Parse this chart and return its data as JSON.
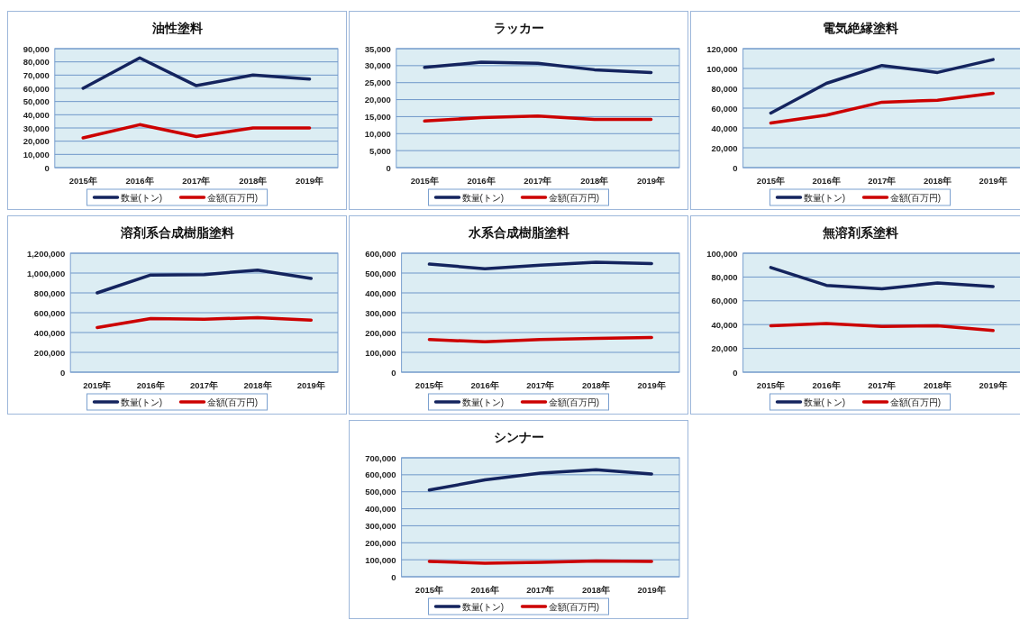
{
  "chart_data": [
    {
      "type": "line",
      "title": "油性塗料",
      "categories": [
        "2015年",
        "2016年",
        "2017年",
        "2018年",
        "2019年"
      ],
      "grid": "y",
      "legend": "bottom",
      "ylim": [
        0,
        90000
      ],
      "yticks": [
        {
          "value": 0,
          "label": "0"
        },
        {
          "value": 10000,
          "label": "10,000"
        },
        {
          "value": 20000,
          "label": "20,000"
        },
        {
          "value": 30000,
          "label": "30,000"
        },
        {
          "value": 40000,
          "label": "40,000"
        },
        {
          "value": 50000,
          "label": "50,000"
        },
        {
          "value": 60000,
          "label": "60,000"
        },
        {
          "value": 70000,
          "label": "70,000"
        },
        {
          "value": 80000,
          "label": "80,000"
        },
        {
          "value": 90000,
          "label": "90,000"
        }
      ],
      "series": [
        {
          "name": "数量(トン)",
          "color": "#14245e",
          "values": [
            60000,
            83000,
            62000,
            70000,
            67000
          ]
        },
        {
          "name": "金額(百万円)",
          "color": "#cc0000",
          "values": [
            22500,
            32500,
            23500,
            30000,
            30000
          ]
        }
      ]
    },
    {
      "type": "line",
      "title": "ラッカー",
      "categories": [
        "2015年",
        "2016年",
        "2017年",
        "2018年",
        "2019年"
      ],
      "grid": "y",
      "legend": "bottom",
      "ylim": [
        0,
        35000
      ],
      "yticks": [
        {
          "value": 0,
          "label": "0"
        },
        {
          "value": 5000,
          "label": "5,000"
        },
        {
          "value": 10000,
          "label": "10,000"
        },
        {
          "value": 15000,
          "label": "15,000"
        },
        {
          "value": 20000,
          "label": "20,000"
        },
        {
          "value": 25000,
          "label": "25,000"
        },
        {
          "value": 30000,
          "label": "30,000"
        },
        {
          "value": 35000,
          "label": "35,000"
        }
      ],
      "series": [
        {
          "name": "数量(トン)",
          "color": "#14245e",
          "values": [
            29500,
            31000,
            30700,
            28800,
            28000
          ]
        },
        {
          "name": "金額(百万円)",
          "color": "#cc0000",
          "values": [
            13700,
            14700,
            15200,
            14200,
            14200
          ]
        }
      ]
    },
    {
      "type": "line",
      "title": "電気絶縁塗料",
      "categories": [
        "2015年",
        "2016年",
        "2017年",
        "2018年",
        "2019年"
      ],
      "grid": "y",
      "legend": "bottom",
      "ylim": [
        0,
        120000
      ],
      "yticks": [
        {
          "value": 0,
          "label": "0"
        },
        {
          "value": 20000,
          "label": "20,000"
        },
        {
          "value": 40000,
          "label": "40,000"
        },
        {
          "value": 60000,
          "label": "60,000"
        },
        {
          "value": 80000,
          "label": "80,000"
        },
        {
          "value": 100000,
          "label": "100,000"
        },
        {
          "value": 120000,
          "label": "120,000"
        }
      ],
      "series": [
        {
          "name": "数量(トン)",
          "color": "#14245e",
          "values": [
            55000,
            85000,
            103000,
            96000,
            109000
          ]
        },
        {
          "name": "金額(百万円)",
          "color": "#cc0000",
          "values": [
            45000,
            53000,
            66000,
            68000,
            75000
          ]
        }
      ]
    },
    {
      "type": "line",
      "title": "溶剤系合成樹脂塗料",
      "categories": [
        "2015年",
        "2016年",
        "2017年",
        "2018年",
        "2019年"
      ],
      "grid": "y",
      "legend": "bottom",
      "ylim": [
        0,
        1200000
      ],
      "yticks": [
        {
          "value": 0,
          "label": "0"
        },
        {
          "value": 200000,
          "label": "200,000"
        },
        {
          "value": 400000,
          "label": "400,000"
        },
        {
          "value": 600000,
          "label": "600,000"
        },
        {
          "value": 800000,
          "label": "800,000"
        },
        {
          "value": 1000000,
          "label": "1,000,000"
        },
        {
          "value": 1200000,
          "label": "1,200,000"
        }
      ],
      "series": [
        {
          "name": "数量(トン)",
          "color": "#14245e",
          "values": [
            800000,
            980000,
            985000,
            1030000,
            945000
          ]
        },
        {
          "name": "金額(百万円)",
          "color": "#cc0000",
          "values": [
            450000,
            540000,
            535000,
            550000,
            525000
          ]
        }
      ]
    },
    {
      "type": "line",
      "title": "水系合成樹脂塗料",
      "categories": [
        "2015年",
        "2016年",
        "2017年",
        "2018年",
        "2019年"
      ],
      "grid": "y",
      "legend": "bottom",
      "ylim": [
        0,
        600000
      ],
      "yticks": [
        {
          "value": 0,
          "label": "0"
        },
        {
          "value": 100000,
          "label": "100,000"
        },
        {
          "value": 200000,
          "label": "200,000"
        },
        {
          "value": 300000,
          "label": "300,000"
        },
        {
          "value": 400000,
          "label": "400,000"
        },
        {
          "value": 500000,
          "label": "500,000"
        },
        {
          "value": 600000,
          "label": "600,000"
        }
      ],
      "series": [
        {
          "name": "数量(トン)",
          "color": "#14245e",
          "values": [
            545000,
            522000,
            540000,
            555000,
            548000
          ]
        },
        {
          "name": "金額(百万円)",
          "color": "#cc0000",
          "values": [
            165000,
            153000,
            165000,
            170000,
            175000
          ]
        }
      ]
    },
    {
      "type": "line",
      "title": "無溶剤系塗料",
      "categories": [
        "2015年",
        "2016年",
        "2017年",
        "2018年",
        "2019年"
      ],
      "grid": "y",
      "legend": "bottom",
      "ylim": [
        0,
        100000
      ],
      "yticks": [
        {
          "value": 0,
          "label": "0"
        },
        {
          "value": 20000,
          "label": "20,000"
        },
        {
          "value": 40000,
          "label": "40,000"
        },
        {
          "value": 60000,
          "label": "60,000"
        },
        {
          "value": 80000,
          "label": "80,000"
        },
        {
          "value": 100000,
          "label": "100,000"
        }
      ],
      "series": [
        {
          "name": "数量(トン)",
          "color": "#14245e",
          "values": [
            88000,
            73000,
            70000,
            75000,
            72000
          ]
        },
        {
          "name": "金額(百万円)",
          "color": "#cc0000",
          "values": [
            39000,
            41000,
            38500,
            39000,
            35000
          ]
        }
      ]
    },
    {
      "type": "line",
      "title": "シンナー",
      "categories": [
        "2015年",
        "2016年",
        "2017年",
        "2018年",
        "2019年"
      ],
      "grid": "y",
      "legend": "bottom",
      "ylim": [
        0,
        700000
      ],
      "yticks": [
        {
          "value": 0,
          "label": "0"
        },
        {
          "value": 100000,
          "label": "100,000"
        },
        {
          "value": 200000,
          "label": "200,000"
        },
        {
          "value": 300000,
          "label": "300,000"
        },
        {
          "value": 400000,
          "label": "400,000"
        },
        {
          "value": 500000,
          "label": "500,000"
        },
        {
          "value": 600000,
          "label": "600,000"
        },
        {
          "value": 700000,
          "label": "700,000"
        }
      ],
      "series": [
        {
          "name": "数量(トン)",
          "color": "#14245e",
          "values": [
            510000,
            570000,
            610000,
            630000,
            605000
          ]
        },
        {
          "name": "金額(百万円)",
          "color": "#cc0000",
          "values": [
            90000,
            80000,
            85000,
            93000,
            90000
          ]
        }
      ]
    }
  ]
}
